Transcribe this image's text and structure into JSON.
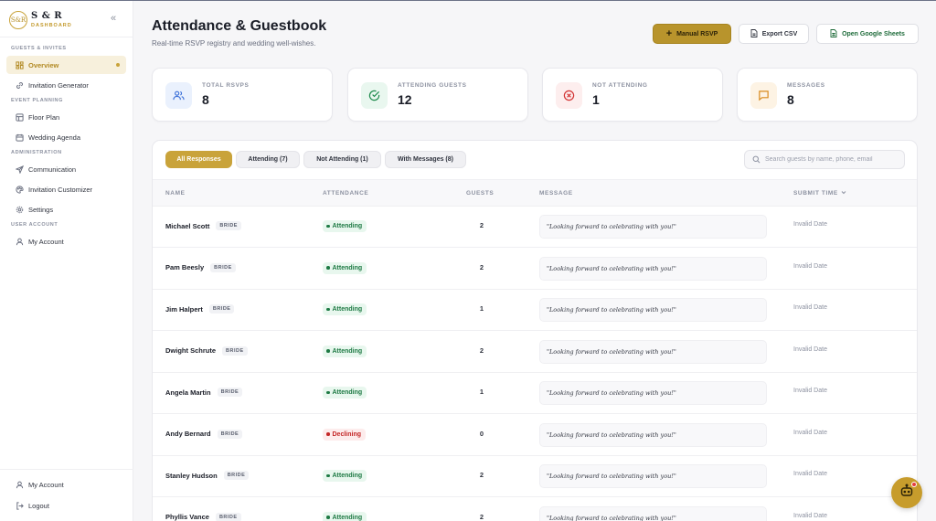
{
  "brand": {
    "initials": "S&R",
    "name": "S & R",
    "subtitle": "DASHBOARD"
  },
  "sidebar": {
    "sections": {
      "guests": "GUESTS & INVITES",
      "planning": "EVENT PLANNING",
      "admin": "ADMINISTRATION",
      "account": "USER ACCOUNT"
    },
    "items": {
      "overview": "Overview",
      "invitation_generator": "Invitation Generator",
      "floor_plan": "Floor Plan",
      "wedding_agenda": "Wedding Agenda",
      "communication": "Communication",
      "invitation_customizer": "Invitation Customizer",
      "settings": "Settings",
      "my_account": "My Account"
    },
    "bottom": {
      "my_account": "My Account",
      "logout": "Logout"
    }
  },
  "header": {
    "title": "Attendance & Guestbook",
    "subtitle": "Real-time RSVP registry and wedding well-wishes.",
    "manual_rsvp": "Manual RSVP",
    "export_csv": "Export CSV",
    "open_sheets": "Open Google Sheets"
  },
  "stats": {
    "total": {
      "label": "TOTAL RSVPS",
      "value": "8"
    },
    "attending": {
      "label": "ATTENDING GUESTS",
      "value": "12"
    },
    "not_attending": {
      "label": "NOT ATTENDING",
      "value": "1"
    },
    "messages": {
      "label": "MESSAGES",
      "value": "8"
    }
  },
  "filters": {
    "all": "All Responses",
    "attending": "Attending (7)",
    "not_attending": "Not Attending (1)",
    "with_messages": "With Messages (8)",
    "search_placeholder": "Search guests by name, phone, email"
  },
  "table": {
    "headers": {
      "name": "NAME",
      "attendance": "ATTENDANCE",
      "guests": "GUESTS",
      "message": "MESSAGE",
      "submit_time": "SUBMIT TIME"
    },
    "rows": [
      {
        "name": "Michael Scott",
        "tag": "BRIDE",
        "status": "Attending",
        "guests": "2",
        "message": "\"Looking forward to celebrating with you!\"",
        "time": "Invalid Date"
      },
      {
        "name": "Pam Beesly",
        "tag": "BRIDE",
        "status": "Attending",
        "guests": "2",
        "message": "\"Looking forward to celebrating with you!\"",
        "time": "Invalid Date"
      },
      {
        "name": "Jim Halpert",
        "tag": "BRIDE",
        "status": "Attending",
        "guests": "1",
        "message": "\"Looking forward to celebrating with you!\"",
        "time": "Invalid Date"
      },
      {
        "name": "Dwight Schrute",
        "tag": "BRIDE",
        "status": "Attending",
        "guests": "2",
        "message": "\"Looking forward to celebrating with you!\"",
        "time": "Invalid Date"
      },
      {
        "name": "Angela Martin",
        "tag": "BRIDE",
        "status": "Attending",
        "guests": "1",
        "message": "\"Looking forward to celebrating with you!\"",
        "time": "Invalid Date"
      },
      {
        "name": "Andy Bernard",
        "tag": "BRIDE",
        "status": "Declining",
        "guests": "0",
        "message": "\"Looking forward to celebrating with you!\"",
        "time": "Invalid Date"
      },
      {
        "name": "Stanley Hudson",
        "tag": "BRIDE",
        "status": "Attending",
        "guests": "2",
        "message": "\"Looking forward to celebrating with you!\"",
        "time": "Invalid Date"
      },
      {
        "name": "Phyllis Vance",
        "tag": "BRIDE",
        "status": "Attending",
        "guests": "2",
        "message": "\"Looking forward to celebrating with you!\"",
        "time": "Invalid Date"
      }
    ]
  },
  "colors": {
    "accent": "#c9a33a",
    "attending": "#1e7a44",
    "declining": "#c42727"
  }
}
